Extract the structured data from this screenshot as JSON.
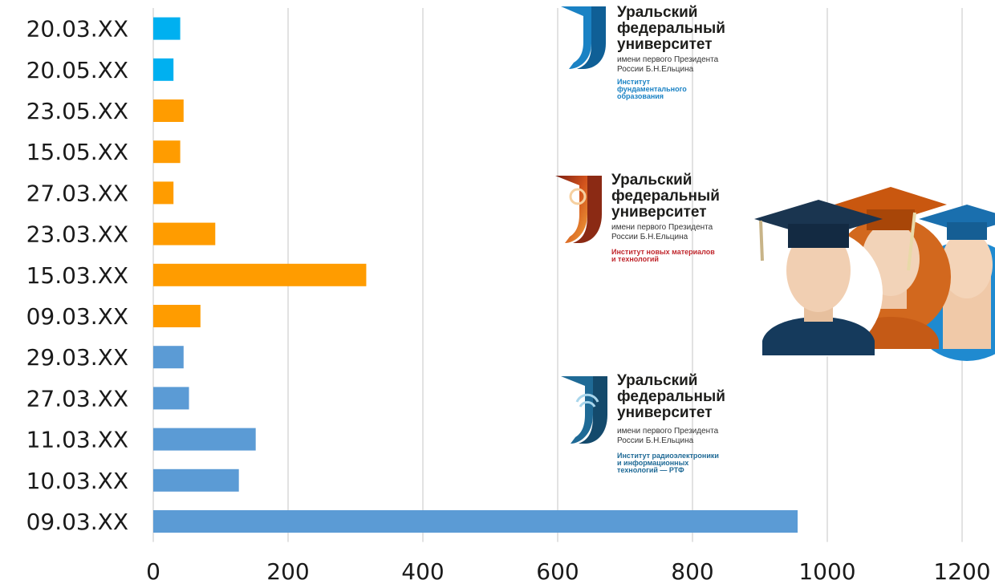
{
  "chart_data": {
    "type": "bar",
    "orientation": "horizontal",
    "categories": [
      "20.03.XX",
      "20.05.XX",
      "23.05.XX",
      "15.05.XX",
      "27.03.XX",
      "23.03.XX",
      "15.03.XX",
      "09.03.XX",
      "29.03.XX",
      "27.03.XX",
      "11.03.XX",
      "10.03.XX",
      "09.03.XX"
    ],
    "values": [
      40,
      30,
      45,
      40,
      30,
      92,
      316,
      70,
      45,
      53,
      152,
      127,
      956
    ],
    "bar_colors": [
      "#00b0f0",
      "#00b0f0",
      "#ff9c00",
      "#ff9c00",
      "#ff9c00",
      "#ff9c00",
      "#ff9c00",
      "#ff9c00",
      "#5b9bd5",
      "#5b9bd5",
      "#5b9bd5",
      "#5b9bd5",
      "#5b9bd5"
    ],
    "xlim": [
      0,
      1200
    ],
    "x_ticks": [
      0,
      200,
      400,
      600,
      800,
      1000,
      1200
    ],
    "grid": "vertical",
    "title": "",
    "xlabel": "",
    "ylabel": ""
  },
  "logos": [
    {
      "line1": "Уральский",
      "line2": "федеральный",
      "line3": "университет",
      "sub1": "имени первого Президента",
      "sub2": "России Б.Н.Ельцина",
      "institute": [
        "Институт",
        "фундаментального",
        "образования"
      ],
      "accent": "#1a82c4"
    },
    {
      "line1": "Уральский",
      "line2": "федеральный",
      "line3": "университет",
      "sub1": "имени первого Президента",
      "sub2": "России Б.Н.Ельцина",
      "institute": [
        "Институт новых материалов",
        "и технологий"
      ],
      "accent": "#c0272d"
    },
    {
      "line1": "Уральский",
      "line2": "федеральный",
      "line3": "университет",
      "sub1": "имени первого Президента",
      "sub2": "России Б.Н.Ельцина",
      "institute": [
        "Институт радиоэлектроники",
        "и информационных",
        "технологий — РТФ"
      ],
      "accent": "#1f6a96"
    }
  ],
  "graduates_icon": "graduates-icon"
}
